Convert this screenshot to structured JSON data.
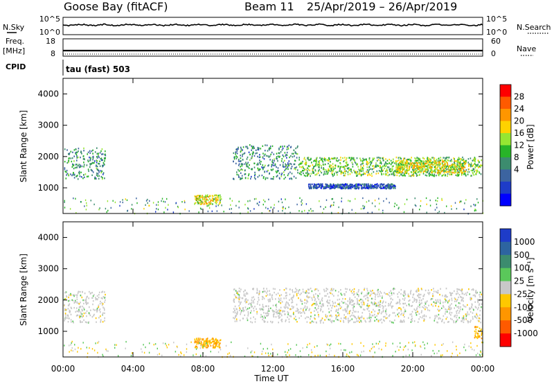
{
  "header": {
    "station": "Goose Bay (fitACF)",
    "beam": "Beam 11",
    "dates": "25/Apr/2019 – 26/Apr/2019"
  },
  "left_labels": {
    "nsky": "N.Sky",
    "freq": "Freq.",
    "freq_unit": "[MHz]",
    "cpid": "CPID"
  },
  "right_labels": {
    "nsearch": "N.Search",
    "nave": "Nave"
  },
  "cpid_value": "tau (fast) 503",
  "noise_panel": {
    "left_ticks": [
      "10^5",
      "10^0"
    ],
    "right_ticks": [
      "10^5",
      "10^0"
    ]
  },
  "freq_panel": {
    "left_ticks": [
      "18",
      "8"
    ],
    "right_ticks": [
      "60",
      "0"
    ]
  },
  "power_colorbar": {
    "label": "Power [dB]",
    "ticks": [
      "28",
      "24",
      "20",
      "16",
      "12",
      "8",
      "4"
    ],
    "colors": [
      "#ff0000",
      "#ff5a00",
      "#ff9600",
      "#ffd200",
      "#96e632",
      "#28b428",
      "#3c8c6e",
      "#3c64a0",
      "#1e3cc8",
      "#0000ff"
    ]
  },
  "velocity_colorbar": {
    "label": "Velocity [m s⁻¹]",
    "ticks": [
      "1000",
      "500",
      "100",
      "25",
      "-25",
      "-100",
      "-500",
      "-1000"
    ],
    "colors": [
      "#1e3cc8",
      "#2d64a0",
      "#3c8c6e",
      "#5ac85a",
      "#c8c8c8",
      "#ffc800",
      "#ff9600",
      "#ff5a00",
      "#ff0000"
    ]
  },
  "x_axis": {
    "label": "Time UT",
    "ticks": [
      "00:00",
      "04:00",
      "08:00",
      "12:00",
      "16:00",
      "20:00",
      "00:00"
    ]
  },
  "chart_data": [
    {
      "type": "heatmap",
      "title": "",
      "xlabel": "Time UT",
      "ylabel": "Slant Range [km]",
      "colorbar_label": "Power [dB]",
      "x_ticks": [
        "00:00",
        "04:00",
        "08:00",
        "12:00",
        "16:00",
        "20:00",
        "00:00"
      ],
      "y_ticks": [
        1000,
        2000,
        3000,
        4000
      ],
      "ylim": [
        180,
        4500
      ],
      "zlim": [
        0,
        30
      ],
      "features": [
        {
          "t_start": 0.0,
          "t_end": 2.4,
          "range_start": 1300,
          "range_end": 2300,
          "value": 12
        },
        {
          "t_start": 9.7,
          "t_end": 13.5,
          "range_start": 1300,
          "range_end": 2400,
          "value": 12
        },
        {
          "t_start": 13.5,
          "t_end": 24.0,
          "range_start": 1400,
          "range_end": 2000,
          "value": 16
        },
        {
          "t_start": 19.0,
          "t_end": 23.0,
          "range_start": 1500,
          "range_end": 1900,
          "value": 20
        },
        {
          "t_start": 14.0,
          "t_end": 19.0,
          "range_start": 1000,
          "range_end": 1150,
          "value": 8
        },
        {
          "t_start": 7.5,
          "t_end": 9.0,
          "range_start": 500,
          "range_end": 800,
          "value": 20
        }
      ]
    },
    {
      "type": "heatmap",
      "title": "",
      "xlabel": "Time UT",
      "ylabel": "Slant Range [km]",
      "colorbar_label": "Velocity [m s⁻¹]",
      "x_ticks": [
        "00:00",
        "04:00",
        "08:00",
        "12:00",
        "16:00",
        "20:00",
        "00:00"
      ],
      "y_ticks": [
        1000,
        2000,
        3000,
        4000
      ],
      "ylim": [
        180,
        4500
      ],
      "zlim": [
        -1000,
        1000
      ],
      "features": [
        {
          "t_start": 0.0,
          "t_end": 2.4,
          "range_start": 1300,
          "range_end": 2300,
          "value": 0
        },
        {
          "t_start": 9.7,
          "t_end": 24.0,
          "range_start": 1300,
          "range_end": 2400,
          "value": 0
        },
        {
          "t_start": 7.5,
          "t_end": 9.0,
          "range_start": 500,
          "range_end": 800,
          "value": -100
        },
        {
          "t_start": 23.5,
          "t_end": 24.0,
          "range_start": 800,
          "range_end": 1200,
          "value": -100
        }
      ]
    }
  ]
}
